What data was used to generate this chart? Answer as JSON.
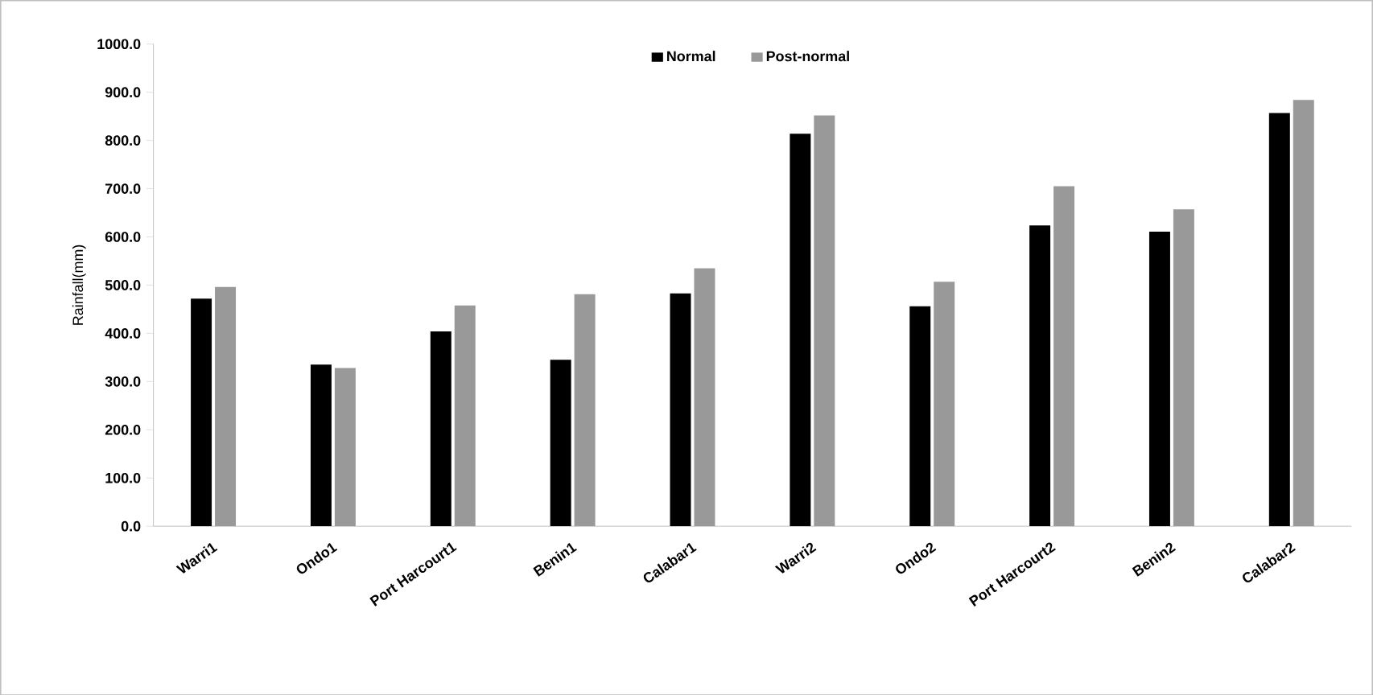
{
  "chart_data": {
    "type": "bar",
    "ylabel": "Rainfall(mm)",
    "categories": [
      "Warri1",
      "Ondo1",
      "Port Harcourt1",
      "Benin1",
      "Calabar1",
      "Warri2",
      "Ondo2",
      "Port Harcourt2",
      "Benin2",
      "Calabar2"
    ],
    "series": [
      {
        "name": "Normal",
        "color": "#000000",
        "values": [
          472,
          335,
          404,
          345,
          483,
          814,
          456,
          624,
          611,
          857
        ]
      },
      {
        "name": "Post-normal",
        "color": "#999999",
        "values": [
          496,
          328,
          458,
          481,
          535,
          852,
          507,
          705,
          657,
          884
        ]
      }
    ],
    "ylim": [
      0,
      1000
    ],
    "yticks": [
      {
        "value": 0,
        "label": "0.0"
      },
      {
        "value": 100,
        "label": "100.0"
      },
      {
        "value": 200,
        "label": "200.0"
      },
      {
        "value": 300,
        "label": "300.0"
      },
      {
        "value": 400,
        "label": "400.0"
      },
      {
        "value": 500,
        "label": "500.0"
      },
      {
        "value": 600,
        "label": "600.0"
      },
      {
        "value": 700,
        "label": "700.0"
      },
      {
        "value": 800,
        "label": "800.0"
      },
      {
        "value": 900,
        "label": "900.0"
      },
      {
        "value": 1000,
        "label": "1000.0"
      }
    ],
    "legend": "top",
    "grid": false
  }
}
